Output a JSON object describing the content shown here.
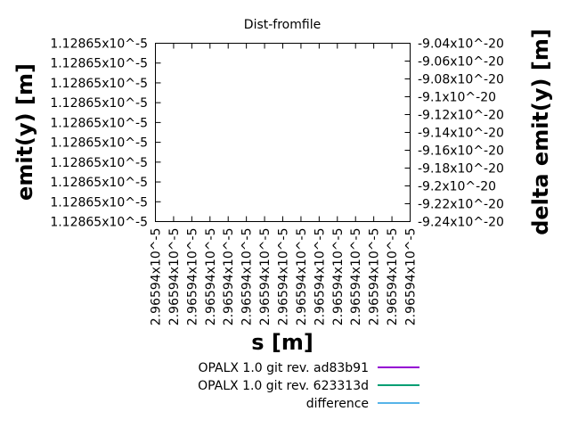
{
  "chart_data": {
    "type": "line",
    "title": "Dist-fromfile",
    "xlabel": "s [m]",
    "ylabel": "emit(y) [m]",
    "y2label": "delta emit(y) [m]",
    "x_tick_labels": [
      "2.96594x10^-5",
      "2.96594x10^-5",
      "2.96594x10^-5",
      "2.96594x10^-5",
      "2.96594x10^-5",
      "2.96594x10^-5",
      "2.96594x10^-5",
      "2.96594x10^-5",
      "2.96594x10^-5",
      "2.96594x10^-5",
      "2.96594x10^-5",
      "2.96594x10^-5",
      "2.96594x10^-5",
      "2.96594x10^-5",
      "2.96594x10^-5"
    ],
    "y_tick_labels": [
      "1.12865x10^-5",
      "1.12865x10^-5",
      "1.12865x10^-5",
      "1.12865x10^-5",
      "1.12865x10^-5",
      "1.12865x10^-5",
      "1.12865x10^-5",
      "1.12865x10^-5",
      "1.12865x10^-5",
      "1.12865x10^-5"
    ],
    "y2_tick_labels": [
      "-9.04x10^-20",
      "-9.06x10^-20",
      "-9.08x10^-20",
      "-9.1x10^-20",
      "-9.12x10^-20",
      "-9.14x10^-20",
      "-9.16x10^-20",
      "-9.18x10^-20",
      "-9.2x10^-20",
      "-9.22x10^-20",
      "-9.24x10^-20"
    ],
    "y2lim": [
      -9.24e-20,
      -9.04e-20
    ],
    "grid": false,
    "legend_position": "bottom",
    "series": [
      {
        "name": "OPALX 1.0 git rev. ad83b91",
        "color": "#9400d3",
        "values": []
      },
      {
        "name": "OPALX 1.0 git rev. 623313d",
        "color": "#009e73",
        "values": []
      },
      {
        "name": "difference",
        "color": "#56b4e9",
        "values": []
      }
    ]
  }
}
